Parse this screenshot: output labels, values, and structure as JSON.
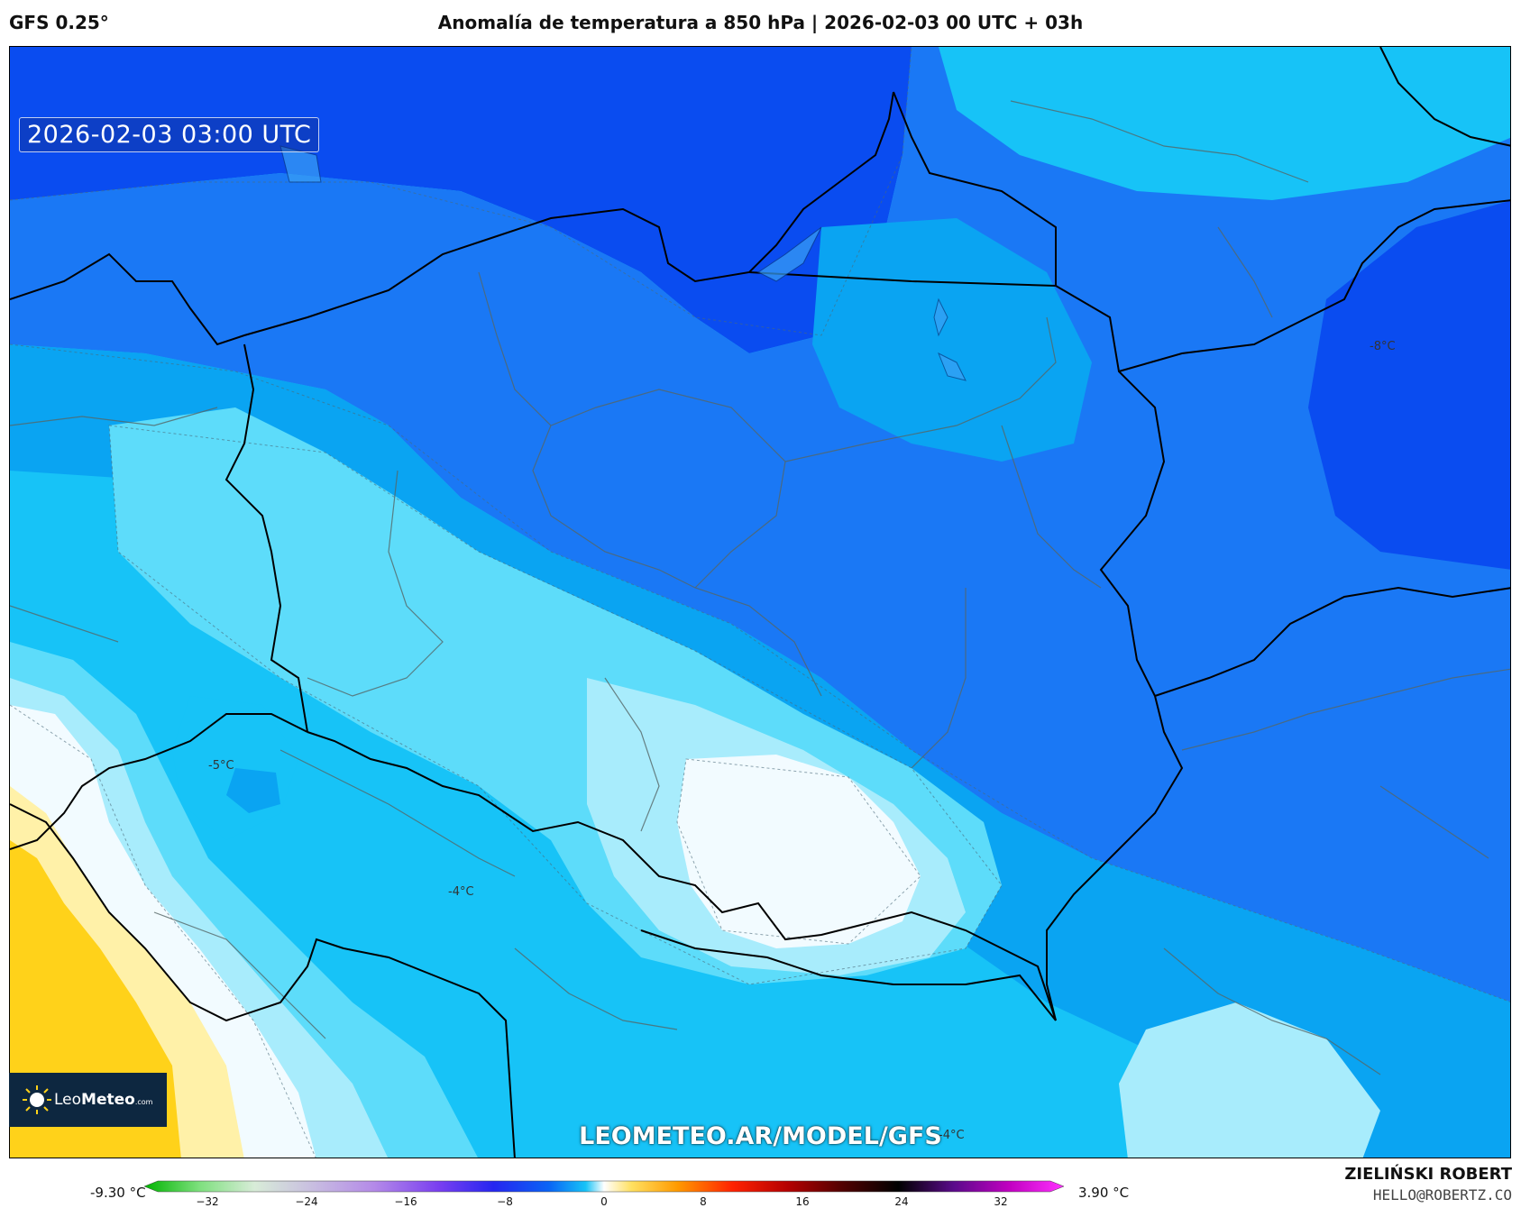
{
  "header": {
    "model": "GFS 0.25°",
    "title": "Anomalía de temperatura a 850 hPa | 2026-02-03 00 UTC + 03h"
  },
  "map": {
    "valid_time": "2026-02-03 03:00 UTC",
    "url": "LEOMETEO.AR/MODEL/GFS",
    "contour_labels": [
      "-8°C",
      "-5°C",
      "-4°C",
      "-4°C"
    ]
  },
  "logo": {
    "prefix": "Leo",
    "name": "Meteo",
    "suffix": ".com"
  },
  "colorbar": {
    "min_label": "-9.30 °C",
    "max_label": "3.90 °C",
    "ticks": [
      "−32",
      "−24",
      "−16",
      "−8",
      "0",
      "8",
      "16",
      "24",
      "32"
    ],
    "tick_values": [
      -32,
      -24,
      -16,
      -8,
      0,
      8,
      16,
      24,
      32
    ]
  },
  "credits": {
    "author": "ZIELIŃSKI ROBERT",
    "email": "HELLO@ROBERTZ.CO"
  },
  "colors": {
    "deep_blue": "#0a4cf0",
    "blue": "#1a78f5",
    "mid_blue": "#0aa4f2",
    "cyan": "#17c3f7",
    "light_cyan": "#5ddcfa",
    "pale_cyan": "#a8ecfc",
    "white": "#f2fbff",
    "pale_yellow": "#fff1a8",
    "yellow": "#ffd21a"
  }
}
